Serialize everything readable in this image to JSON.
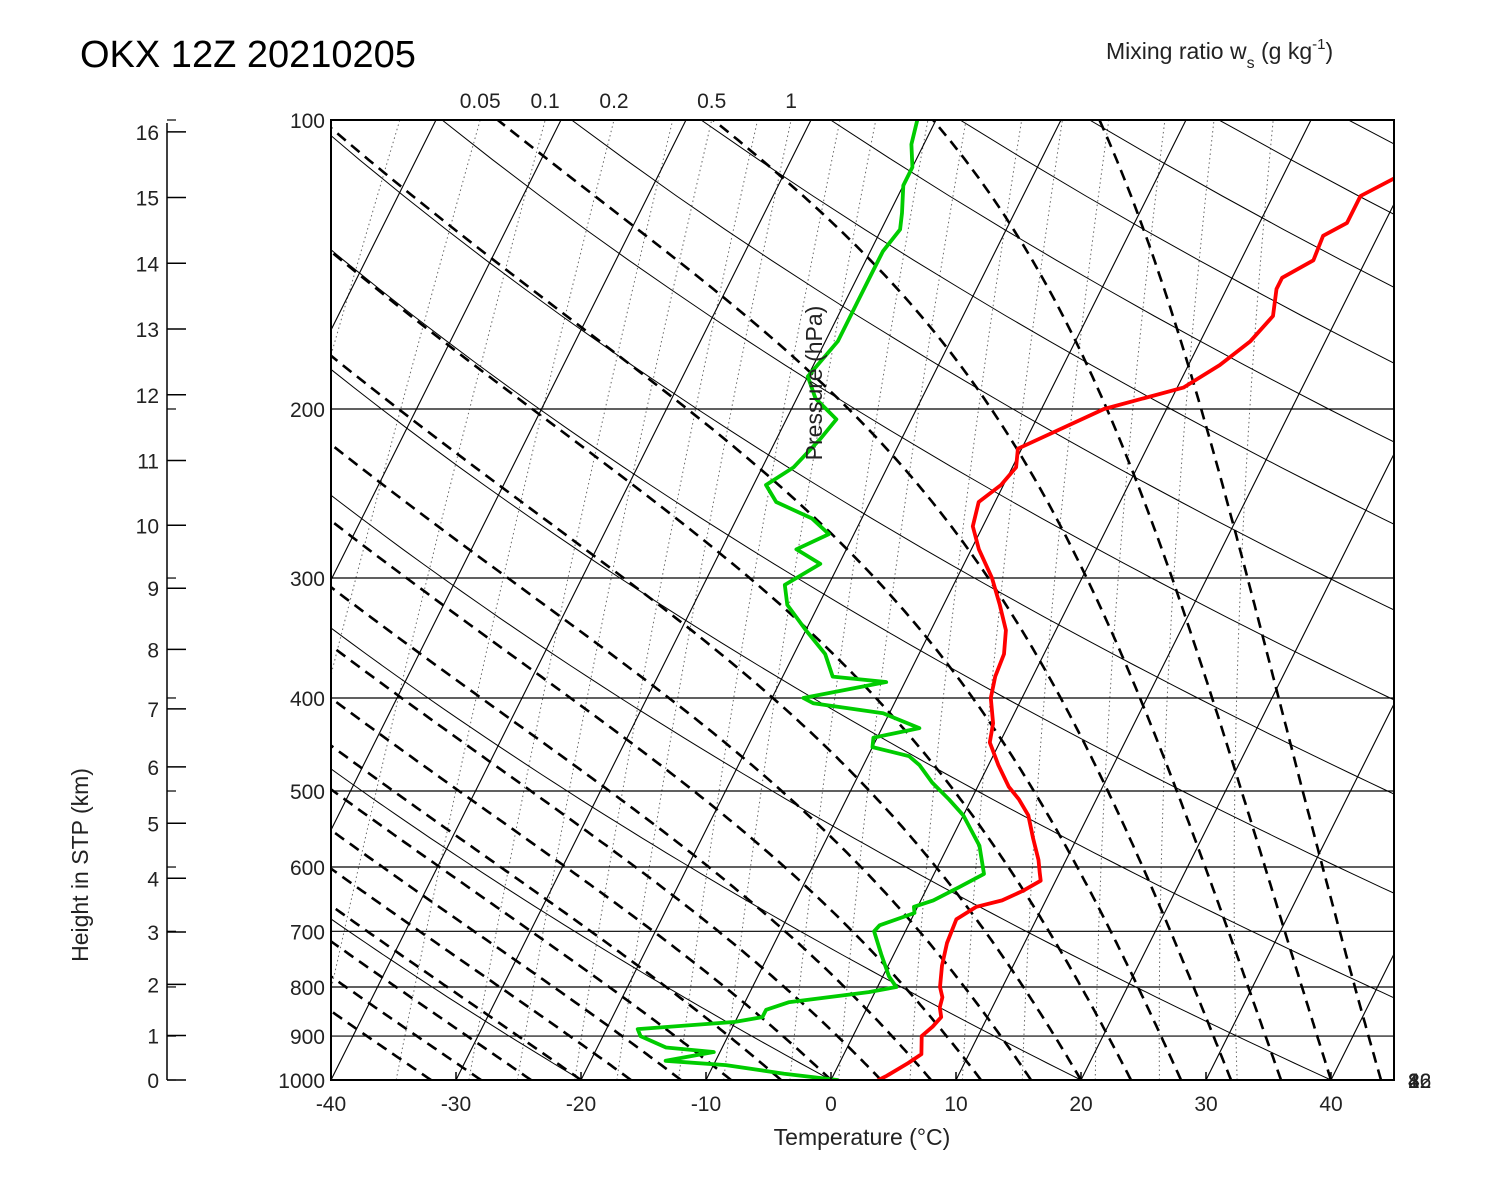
{
  "title": "OKX 12Z 20210205",
  "chart_data": {
    "type": "skew-t log-p sounding",
    "xlabel": "Temperature (°C)",
    "ylabel_left": "Height in STP (km)",
    "ylabel_pressure": "Pressure (hPa)",
    "mixing_ratio_label": {
      "base": "Mixing ratio w",
      "sub": "s",
      "mid": " (g kg",
      "sup": "-1",
      "end": ")"
    },
    "xlim": [
      -40,
      45
    ],
    "plim": [
      1000,
      100
    ],
    "temperature_ticks": [
      -40,
      -30,
      -20,
      -10,
      0,
      10,
      20,
      30,
      40
    ],
    "pressure_ticks": [
      100,
      200,
      300,
      400,
      500,
      600,
      700,
      800,
      900,
      1000
    ],
    "height_ticks_km": [
      0,
      1,
      2,
      3,
      4,
      5,
      6,
      7,
      8,
      9,
      10,
      11,
      12,
      13,
      14,
      15,
      16
    ],
    "mixing_ratio_top_labels": [
      "0.05",
      "0.1",
      "0.2",
      "0.5",
      "1"
    ],
    "mixing_ratio_right_labels": [
      "2",
      "4",
      "8",
      "16",
      "32"
    ],
    "series": [
      {
        "name": "Temperature",
        "color": "#ff0000",
        "points": [
          [
            1000,
            3.8
          ],
          [
            990,
            4.3
          ],
          [
            960,
            5.5
          ],
          [
            940,
            6.2
          ],
          [
            900,
            5.5
          ],
          [
            880,
            6.0
          ],
          [
            860,
            6.3
          ],
          [
            840,
            5.8
          ],
          [
            820,
            5.6
          ],
          [
            800,
            5.0
          ],
          [
            760,
            4.3
          ],
          [
            720,
            3.8
          ],
          [
            680,
            3.6
          ],
          [
            660,
            4.7
          ],
          [
            650,
            6.5
          ],
          [
            635,
            7.8
          ],
          [
            620,
            8.8
          ],
          [
            608,
            8.4
          ],
          [
            590,
            7.8
          ],
          [
            560,
            6.5
          ],
          [
            530,
            5.2
          ],
          [
            510,
            3.8
          ],
          [
            495,
            2.5
          ],
          [
            470,
            0.8
          ],
          [
            445,
            -0.8
          ],
          [
            425,
            -1.3
          ],
          [
            400,
            -2.5
          ],
          [
            380,
            -3.0
          ],
          [
            360,
            -3.2
          ],
          [
            340,
            -4.0
          ],
          [
            320,
            -5.5
          ],
          [
            300,
            -7.2
          ],
          [
            280,
            -9.4
          ],
          [
            265,
            -10.8
          ],
          [
            250,
            -11.3
          ],
          [
            240,
            -10.2
          ],
          [
            230,
            -9.7
          ],
          [
            220,
            -10.3
          ],
          [
            200,
            -5.0
          ],
          [
            190,
            0.5
          ],
          [
            180,
            2.5
          ],
          [
            170,
            4.0
          ],
          [
            160,
            4.8
          ],
          [
            150,
            4.0
          ],
          [
            146,
            4.0
          ],
          [
            140,
            5.8
          ],
          [
            132,
            5.6
          ],
          [
            128,
            7.0
          ],
          [
            120,
            7.0
          ],
          [
            115,
            9.0
          ],
          [
            110,
            9.5
          ],
          [
            105,
            10.4
          ],
          [
            100,
            11.2
          ]
        ]
      },
      {
        "name": "Dewpoint",
        "color": "#00cc00",
        "points": [
          [
            1000,
            0.5
          ],
          [
            985,
            -4.0
          ],
          [
            965,
            -9.0
          ],
          [
            955,
            -14.0
          ],
          [
            935,
            -10.5
          ],
          [
            925,
            -14.5
          ],
          [
            900,
            -17.0
          ],
          [
            885,
            -17.5
          ],
          [
            870,
            -10.0
          ],
          [
            860,
            -8.0
          ],
          [
            845,
            -8.0
          ],
          [
            830,
            -6.5
          ],
          [
            810,
            -0.5
          ],
          [
            800,
            1.5
          ],
          [
            780,
            0.5
          ],
          [
            740,
            -1.0
          ],
          [
            700,
            -2.5
          ],
          [
            690,
            -2.3
          ],
          [
            670,
            0.0
          ],
          [
            660,
            -0.3
          ],
          [
            650,
            1.0
          ],
          [
            630,
            2.5
          ],
          [
            610,
            4.0
          ],
          [
            570,
            2.5
          ],
          [
            530,
            0.0
          ],
          [
            510,
            -1.8
          ],
          [
            490,
            -3.8
          ],
          [
            470,
            -5.5
          ],
          [
            460,
            -6.7
          ],
          [
            450,
            -10.0
          ],
          [
            440,
            -10.3
          ],
          [
            430,
            -7.0
          ],
          [
            415,
            -10.5
          ],
          [
            405,
            -16.5
          ],
          [
            400,
            -17.5
          ],
          [
            385,
            -11.5
          ],
          [
            380,
            -16.0
          ],
          [
            360,
            -17.5
          ],
          [
            340,
            -20.0
          ],
          [
            320,
            -22.5
          ],
          [
            305,
            -23.5
          ],
          [
            290,
            -21.5
          ],
          [
            280,
            -24.0
          ],
          [
            270,
            -22.0
          ],
          [
            260,
            -24.0
          ],
          [
            250,
            -27.5
          ],
          [
            240,
            -29.0
          ],
          [
            230,
            -27.5
          ],
          [
            215,
            -26.5
          ],
          [
            205,
            -26.0
          ],
          [
            195,
            -28.5
          ],
          [
            185,
            -30.0
          ],
          [
            170,
            -29.0
          ],
          [
            155,
            -29.0
          ],
          [
            145,
            -29.0
          ],
          [
            137,
            -29.0
          ],
          [
            130,
            -28.5
          ],
          [
            125,
            -29.0
          ],
          [
            117,
            -30.0
          ],
          [
            112,
            -30.0
          ],
          [
            106,
            -31.0
          ],
          [
            100,
            -31.5
          ]
        ]
      }
    ],
    "isotherms": "solid diagonal, every 10 °C",
    "dry_adiabats": "solid curves",
    "moist_adiabats": "dashed curves",
    "mixing_ratio_lines": "dotted"
  }
}
